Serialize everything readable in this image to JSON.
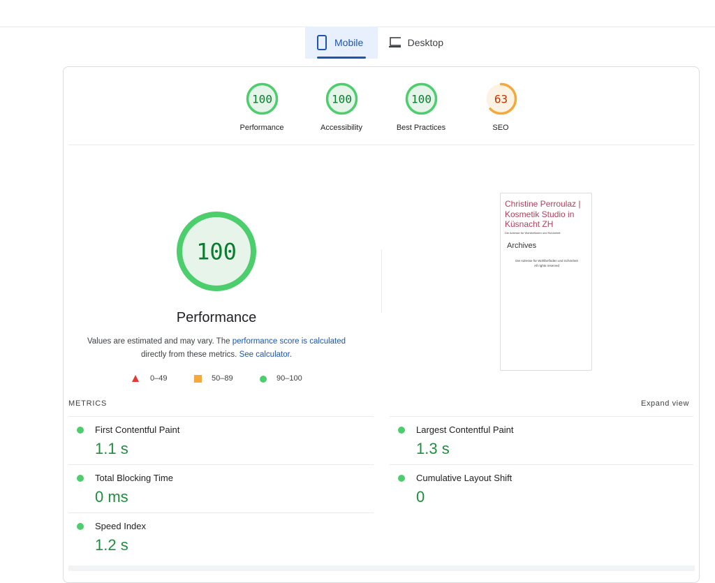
{
  "tabs": [
    {
      "label": "Mobile",
      "active": true
    },
    {
      "label": "Desktop",
      "active": false
    }
  ],
  "scores": [
    {
      "value": 100,
      "label": "Performance",
      "color": "#4cce6d"
    },
    {
      "value": 100,
      "label": "Accessibility",
      "color": "#4cce6d"
    },
    {
      "value": 100,
      "label": "Best Practices",
      "color": "#4cce6d"
    },
    {
      "value": 63,
      "label": "SEO",
      "color": "#f4a93a"
    }
  ],
  "main": {
    "value": 100,
    "title": "Performance",
    "color": "#4cce6d",
    "desc": [
      "Values are estimated and may vary. The ",
      "performance score is calculated",
      " directly from these metrics. ",
      "See calculator",
      "."
    ],
    "legend": [
      "0–49",
      "50–89",
      "90–100"
    ]
  },
  "preview": {
    "title": "Christine Perroulaz | Kosmetik Studio in Küsnacht ZH",
    "tagline": "Die Adresse für Wohlbefinden und Schönheit",
    "heading": "Archives",
    "footer": [
      "Die Adresse für Wohlbefinden und Schönheit",
      "All rights reserved"
    ]
  },
  "metrics": {
    "heading": "METRICS",
    "expand": "Expand view",
    "items": [
      {
        "name": "First Contentful Paint",
        "value": "1.1 s"
      },
      {
        "name": "Largest Contentful Paint",
        "value": "1.3 s"
      },
      {
        "name": "Total Blocking Time",
        "value": "0 ms"
      },
      {
        "name": "Cumulative Layout Shift",
        "value": "0"
      },
      {
        "name": "Speed Index",
        "value": "1.2 s"
      }
    ]
  }
}
